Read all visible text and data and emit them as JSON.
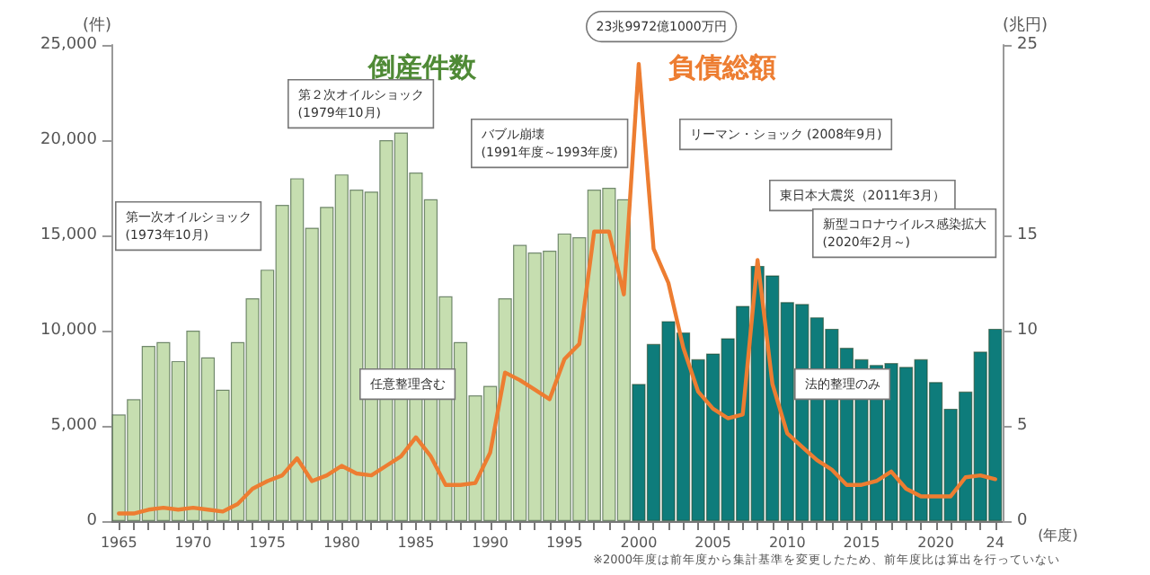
{
  "chart_data": {
    "type": "bar",
    "categories": [
      "1965",
      null,
      null,
      null,
      null,
      "1970",
      null,
      null,
      null,
      null,
      "1975",
      null,
      null,
      null,
      null,
      "1980",
      null,
      null,
      null,
      null,
      "1985",
      null,
      null,
      null,
      null,
      "1990",
      null,
      null,
      null,
      null,
      "1995",
      null,
      null,
      null,
      null,
      "2000",
      null,
      null,
      null,
      null,
      "2005",
      null,
      null,
      null,
      null,
      "2010",
      null,
      null,
      null,
      null,
      "2015",
      null,
      null,
      null,
      null,
      "2020",
      null,
      null,
      null,
      "24"
    ],
    "xlabel": "(年度)",
    "ylabel": "(件)",
    "y2label": "(兆円)",
    "series": [
      {
        "name": "倒産件数",
        "colors": [
          "#c6deb0",
          "#c6deb0",
          "#c6deb0",
          "#c6deb0",
          "#c6deb0",
          "#c6deb0",
          "#c6deb0",
          "#c6deb0",
          "#c6deb0",
          "#c6deb0",
          "#c6deb0",
          "#c6deb0",
          "#c6deb0",
          "#c6deb0",
          "#c6deb0",
          "#c6deb0",
          "#c6deb0",
          "#c6deb0",
          "#c6deb0",
          "#c6deb0",
          "#c6deb0",
          "#c6deb0",
          "#c6deb0",
          "#c6deb0",
          "#c6deb0",
          "#c6deb0",
          "#c6deb0",
          "#c6deb0",
          "#c6deb0",
          "#c6deb0",
          "#c6deb0",
          "#c6deb0",
          "#c6deb0",
          "#c6deb0",
          "#c6deb0",
          "#0e7c7b",
          "#0e7c7b",
          "#0e7c7b",
          "#0e7c7b",
          "#0e7c7b",
          "#0e7c7b",
          "#0e7c7b",
          "#0e7c7b",
          "#0e7c7b",
          "#0e7c7b",
          "#0e7c7b",
          "#0e7c7b",
          "#0e7c7b",
          "#0e7c7b",
          "#0e7c7b",
          "#0e7c7b",
          "#0e7c7b",
          "#0e7c7b",
          "#0e7c7b",
          "#0e7c7b",
          "#0e7c7b",
          "#0e7c7b",
          "#0e7c7b",
          "#0e7c7b",
          "#0e7c7b"
        ],
        "values": [
          5600,
          6400,
          9200,
          9400,
          8400,
          10000,
          8600,
          6900,
          9400,
          11700,
          13200,
          16600,
          18000,
          15400,
          16500,
          18200,
          17400,
          17300,
          20000,
          20400,
          18300,
          16900,
          11800,
          9400,
          6600,
          7100,
          11700,
          14500,
          14100,
          14200,
          15100,
          14900,
          17400,
          17500,
          16900,
          7200,
          9300,
          10500,
          9900,
          8500,
          8800,
          9600,
          11300,
          13400,
          12900,
          11500,
          11400,
          10700,
          10100,
          9100,
          8500,
          8200,
          8300,
          8100,
          8500,
          7300,
          5900,
          6800,
          8900,
          10100
        ]
      },
      {
        "name": "負債総額",
        "type": "line",
        "axis": "y2",
        "color": "#ed7d31",
        "values": [
          0.4,
          0.4,
          0.6,
          0.7,
          0.6,
          0.7,
          0.6,
          0.5,
          0.9,
          1.7,
          2.1,
          2.4,
          3.3,
          2.1,
          2.4,
          2.9,
          2.5,
          2.4,
          2.9,
          3.4,
          4.4,
          3.4,
          1.9,
          1.9,
          2.0,
          3.6,
          7.8,
          7.4,
          6.9,
          6.4,
          8.5,
          9.3,
          15.2,
          15.2,
          11.9,
          24.0,
          14.3,
          12.5,
          9.1,
          6.8,
          5.9,
          5.4,
          5.6,
          13.7,
          7.2,
          4.6,
          3.9,
          3.2,
          2.7,
          1.9,
          1.9,
          2.1,
          2.6,
          1.7,
          1.3,
          1.3,
          1.3,
          2.3,
          2.4,
          2.2
        ]
      }
    ],
    "ylim": [
      0,
      25000
    ],
    "yticks": [
      {
        "value": 0,
        "label": "0"
      },
      {
        "value": 5000,
        "label": "5,000"
      },
      {
        "value": 10000,
        "label": "10,000"
      },
      {
        "value": 15000,
        "label": "15,000"
      },
      {
        "value": 20000,
        "label": "20,000"
      },
      {
        "value": 25000,
        "label": "25,000"
      }
    ],
    "y2lim": [
      0,
      25
    ],
    "y2ticks": [
      0,
      5,
      10,
      15,
      25
    ],
    "annotations": [
      "第一次オイルショック\n(1973年10月)",
      "第２次オイルショック\n(1979年10月)",
      "バブル崩壊\n(1991年度～1993年度)",
      "23兆9972億1000万円",
      "リーマン・ショック (2008年9月)",
      "東日本大震災（2011年3月）",
      "新型コロナウイルス感染拡大\n(2020年2月～)",
      "任意整理含む",
      "法的整理のみ",
      "※2000年度は前年度から集計基準を変更したため、前年度比は算出を行っていない"
    ],
    "grid": false,
    "legend": false,
    "marker": "none",
    "line_style": "solid"
  }
}
